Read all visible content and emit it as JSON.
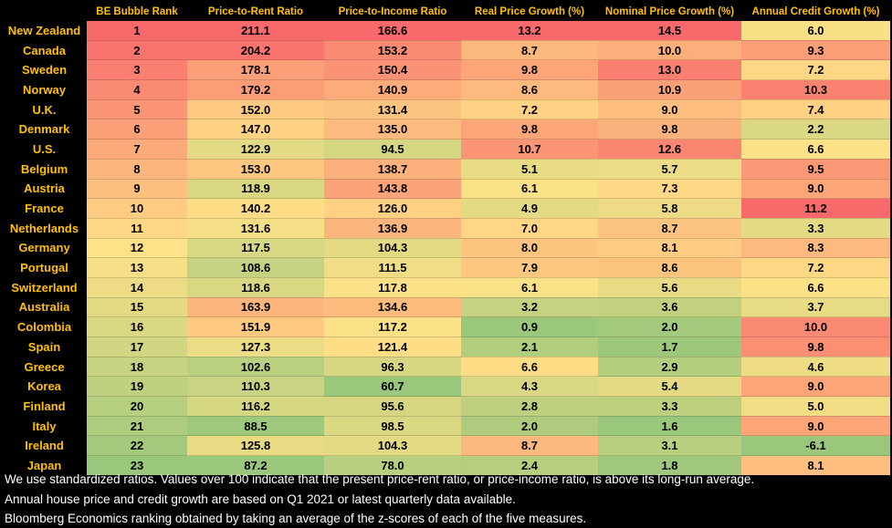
{
  "table": {
    "header": [
      "BE Bubble Rank",
      "Price-to-Rent Ratio",
      "Price-to-Income Ratio",
      "Real Price Growth (%)",
      "Nominal Price Growth (%)",
      "Annual Credit Growth (%)"
    ],
    "rows": [
      [
        "New Zealand",
        "1",
        "211.1",
        "166.6",
        "13.2",
        "14.5",
        "6.0"
      ],
      [
        "Canada",
        "2",
        "204.2",
        "153.2",
        "8.7",
        "10.0",
        "9.3"
      ],
      [
        "Sweden",
        "3",
        "178.1",
        "150.4",
        "9.8",
        "13.0",
        "7.2"
      ],
      [
        "Norway",
        "4",
        "179.2",
        "140.9",
        "8.6",
        "10.9",
        "10.3"
      ],
      [
        "U.K.",
        "5",
        "152.0",
        "131.4",
        "7.2",
        "9.0",
        "7.4"
      ],
      [
        "Denmark",
        "6",
        "147.0",
        "135.0",
        "9.8",
        "9.8",
        "2.2"
      ],
      [
        "U.S.",
        "7",
        "122.9",
        "94.5",
        "10.7",
        "12.6",
        "6.6"
      ],
      [
        "Belgium",
        "8",
        "153.0",
        "138.7",
        "5.1",
        "5.7",
        "9.5"
      ],
      [
        "Austria",
        "9",
        "118.9",
        "143.8",
        "6.1",
        "7.3",
        "9.0"
      ],
      [
        "France",
        "10",
        "140.2",
        "126.0",
        "4.9",
        "5.8",
        "11.2"
      ],
      [
        "Netherlands",
        "11",
        "131.6",
        "136.9",
        "7.0",
        "8.7",
        "3.3"
      ],
      [
        "Germany",
        "12",
        "117.5",
        "104.3",
        "8.0",
        "8.1",
        "8.3"
      ],
      [
        "Portugal",
        "13",
        "108.6",
        "111.5",
        "7.9",
        "8.6",
        "7.2"
      ],
      [
        "Switzerland",
        "14",
        "118.6",
        "117.8",
        "6.1",
        "5.6",
        "6.6"
      ],
      [
        "Australia",
        "15",
        "163.9",
        "134.6",
        "3.2",
        "3.6",
        "3.7"
      ],
      [
        "Colombia",
        "16",
        "151.9",
        "117.2",
        "0.9",
        "2.0",
        "10.0"
      ],
      [
        "Spain",
        "17",
        "127.3",
        "121.4",
        "2.1",
        "1.7",
        "9.8"
      ],
      [
        "Greece",
        "18",
        "102.6",
        "96.3",
        "6.6",
        "2.9",
        "4.6"
      ],
      [
        "Korea",
        "19",
        "110.3",
        "60.7",
        "4.3",
        "5.4",
        "9.0"
      ],
      [
        "Finland",
        "20",
        "116.2",
        "95.6",
        "2.8",
        "3.3",
        "5.0"
      ],
      [
        "Italy",
        "21",
        "88.5",
        "98.5",
        "2.0",
        "1.6",
        "9.0"
      ],
      [
        "Ireland",
        "22",
        "125.8",
        "104.3",
        "8.7",
        "3.1",
        "-6.1"
      ],
      [
        "Japan",
        "23",
        "87.2",
        "78.0",
        "2.4",
        "1.8",
        "8.1"
      ]
    ]
  },
  "notes": [
    "We use standardized ratios. Values over 100 indicate that the present price-rent ratio, or price-income ratio, is above its long-run average.",
    "Annual house price and credit growth are based on Q1 2021 or latest quarterly data available.",
    "Bloomberg Economics ranking obtained by taking an average of the z-scores of each of the five measures."
  ]
}
